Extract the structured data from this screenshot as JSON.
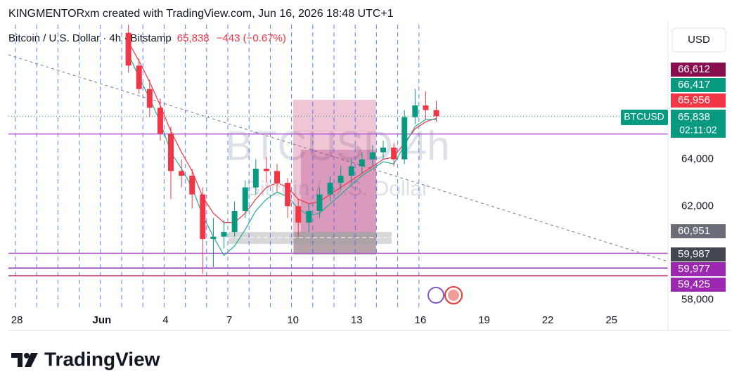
{
  "chart_data": {
    "type": "candlestick",
    "attribution": "KINGMENTORxm created with TradingView.com, Jun 16, 2026 18:48 UTC+1",
    "title": "Bitcoin / U.S. Dollar · 4h · Bitstamp",
    "last_label": "65,838",
    "change_label": "−443 (−0.67%)",
    "watermark": "BTCUSD 4h",
    "watermark_subtitle": "Bitcoin / U.S. Dollar",
    "currency": "USD",
    "symbol": "BTCUSD",
    "countdown": "02:11:02",
    "brand": "TradingView",
    "up_color": "#089981",
    "down_color": "#f23645",
    "x": [
      2.25,
      2.75,
      3.25,
      3.75,
      4.25,
      4.75,
      5.25,
      5.75,
      6.25,
      6.75,
      7.25,
      7.75,
      8.25,
      8.75,
      9.25,
      9.75,
      10.25,
      10.75,
      11.25,
      11.75,
      12.25,
      12.75,
      13.25,
      13.75,
      14.25,
      14.75,
      15.25,
      15.75,
      16.25,
      16.75
    ],
    "open": [
      69400,
      68000,
      67000,
      66200,
      65100,
      63500,
      63300,
      62500,
      60600,
      60700,
      60900,
      61800,
      62800,
      63600,
      63500,
      63000,
      62000,
      61300,
      61800,
      62500,
      63000,
      63300,
      63700,
      64000,
      64300,
      64500,
      64000,
      65800,
      66300,
      66100
    ],
    "high": [
      69750,
      68300,
      67400,
      66600,
      65400,
      64000,
      63600,
      62800,
      61500,
      61400,
      62200,
      63100,
      64000,
      64100,
      63800,
      63200,
      62300,
      62100,
      62800,
      63300,
      63700,
      64000,
      64300,
      64600,
      64800,
      64700,
      66100,
      67000,
      66900,
      66500
    ],
    "low": [
      67700,
      66800,
      65800,
      64800,
      62300,
      62800,
      61900,
      59100,
      59400,
      60200,
      60700,
      61500,
      62500,
      63000,
      62600,
      61500,
      60700,
      60900,
      61500,
      62200,
      62700,
      63000,
      63400,
      63700,
      64000,
      63700,
      63800,
      65500,
      65700,
      65600
    ],
    "close": [
      68000,
      67000,
      66200,
      65100,
      63500,
      63300,
      62500,
      60600,
      60700,
      60900,
      61800,
      62800,
      63600,
      63500,
      63000,
      62000,
      61300,
      61800,
      62500,
      63000,
      63300,
      63700,
      64000,
      64300,
      64500,
      64000,
      65800,
      66300,
      66100,
      65838
    ],
    "overlays": [
      {
        "color": "#f23645",
        "values": [
          69000,
          68200,
          67300,
          66300,
          65200,
          64300,
          63500,
          62400,
          61700,
          61300,
          61300,
          61700,
          62300,
          62800,
          63000,
          62800,
          62300,
          62100,
          62200,
          62500,
          62800,
          63100,
          63400,
          63700,
          64000,
          64100,
          64700,
          65300,
          65600,
          65750
        ]
      },
      {
        "color": "#22ab94",
        "values": [
          68500,
          67500,
          66600,
          65600,
          64300,
          63600,
          62800,
          61600,
          60700,
          59900,
          60300,
          61000,
          61800,
          62300,
          62600,
          62400,
          61900,
          61600,
          61700,
          62100,
          62500,
          62900,
          63300,
          63600,
          63900,
          63800,
          64600,
          65400,
          65700,
          65700
        ]
      }
    ],
    "levels": [
      {
        "value": 65080,
        "color": "#b05bd0"
      },
      {
        "value": 59987,
        "color": "#b05bd0"
      },
      {
        "value": 59360,
        "color": "#7b1fa2"
      },
      {
        "value": 59030,
        "color": "#b0184b"
      }
    ],
    "price_labels": [
      {
        "value": 66612,
        "label": "66,612",
        "color": "#880e4f"
      },
      {
        "value": 66417,
        "label": "66,417",
        "color": "#089981"
      },
      {
        "value": 65956,
        "label": "65,956",
        "color": "#f23645"
      },
      {
        "value": 65838,
        "label": "65,838",
        "color": "#089981"
      },
      {
        "value": 60951,
        "label": "60,951",
        "color": "#6a6d78"
      },
      {
        "value": 59987,
        "label": "59,987",
        "color": "#434651"
      },
      {
        "value": 59977,
        "label": "59,977",
        "color": "#9c27b0"
      },
      {
        "value": 59425,
        "label": "59,425",
        "color": "#9c27b0"
      }
    ],
    "xlim": [
      -3.4,
      27.66
    ],
    "ylim": [
      57600,
      69750
    ],
    "xticks": [
      {
        "value": -3,
        "label": "28"
      },
      {
        "value": 1,
        "label": "Jun"
      },
      4,
      7,
      10,
      13,
      16,
      19,
      22,
      25
    ],
    "yticks": [
      {
        "value": 58000,
        "label": "58,000"
      },
      {
        "value": 62000,
        "label": "62,000"
      },
      {
        "value": 64000,
        "label": "64,000"
      }
    ]
  }
}
